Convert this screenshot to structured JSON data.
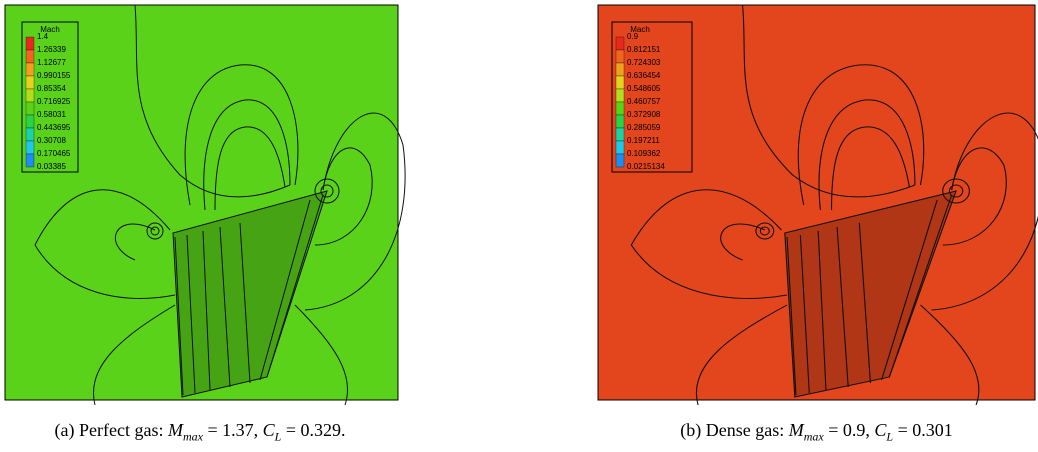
{
  "panels": [
    {
      "legend": {
        "title": "Mach",
        "levels": [
          "1.4",
          "1.26339",
          "1.12677",
          "0.990155",
          "0.85354",
          "0.716925",
          "0.58031",
          "0.443695",
          "0.30708",
          "0.170465",
          "0.03385"
        ],
        "colors": [
          "#e8281e",
          "#f0641e",
          "#f0a01e",
          "#e6d21e",
          "#b4dc1e",
          "#5ad21a",
          "#2ad24a",
          "#1ed2a0",
          "#1ec8e6",
          "#1e8cf0",
          "#1e46e6"
        ]
      },
      "field_color": "#5ad21a",
      "body_color": "#c89628",
      "caption": {
        "prefix": "(a) Perfect gas: ",
        "m_symbol": "M",
        "m_sub": "max",
        "m_rest": " = 1.37, ",
        "c_symbol": "C",
        "c_sub": "L",
        "c_rest": " = 0.329."
      }
    },
    {
      "legend": {
        "title": "Mach",
        "levels": [
          "0.9",
          "0.812151",
          "0.724303",
          "0.636454",
          "0.548605",
          "0.460757",
          "0.372908",
          "0.285059",
          "0.197211",
          "0.109362",
          "0.0215134"
        ],
        "colors": [
          "#e8281e",
          "#f0641e",
          "#f0a01e",
          "#e6d21e",
          "#b4dc1e",
          "#5ad21a",
          "#2ad24a",
          "#1ed2a0",
          "#1ec8e6",
          "#1e8cf0",
          "#1e46e6"
        ]
      },
      "field_color": "#e3461c",
      "body_color": "#c02a14",
      "caption": {
        "prefix": "(b) Dense gas: ",
        "m_symbol": "M",
        "m_sub": "max",
        "m_rest": " = 0.9, ",
        "c_symbol": "C",
        "c_sub": "L",
        "c_rest": " = 0.301"
      }
    }
  ]
}
